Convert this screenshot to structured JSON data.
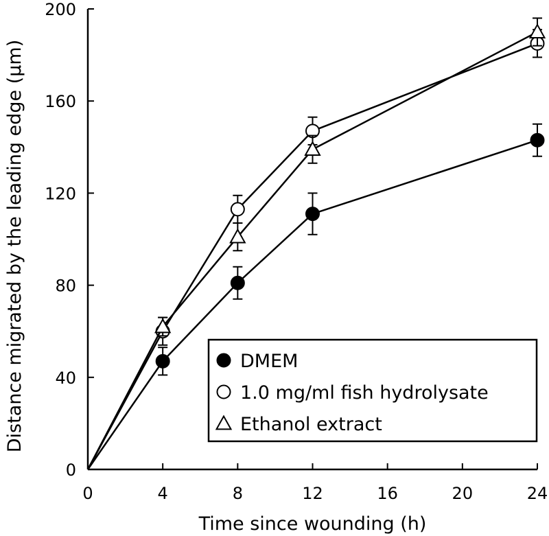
{
  "chart_data": {
    "type": "line",
    "xlabel": "Time since wounding (h)",
    "ylabel": "Distance migrated by the leading edge (μm)",
    "xlim": [
      0,
      24
    ],
    "ylim": [
      0,
      200
    ],
    "xticks": [
      0,
      4,
      8,
      12,
      16,
      20,
      24
    ],
    "yticks": [
      0,
      40,
      80,
      120,
      160,
      200
    ],
    "grid": false,
    "legend_position": "bottom-right",
    "series": [
      {
        "name": "DMEM",
        "marker": "filled-circle",
        "x": [
          0,
          4,
          8,
          12,
          24
        ],
        "y": [
          0,
          47,
          81,
          111,
          143
        ],
        "err": [
          0,
          6,
          7,
          9,
          7
        ]
      },
      {
        "name": "1.0 mg/ml fish hydrolysate",
        "marker": "open-circle",
        "x": [
          0,
          4,
          8,
          12,
          24
        ],
        "y": [
          0,
          60,
          113,
          147,
          185
        ],
        "err": [
          0,
          6,
          6,
          6,
          6
        ]
      },
      {
        "name": "Ethanol extract",
        "marker": "open-triangle",
        "x": [
          0,
          4,
          8,
          12,
          24
        ],
        "y": [
          0,
          62,
          101,
          139,
          190
        ],
        "err": [
          0,
          4,
          6,
          6,
          6
        ]
      }
    ]
  }
}
